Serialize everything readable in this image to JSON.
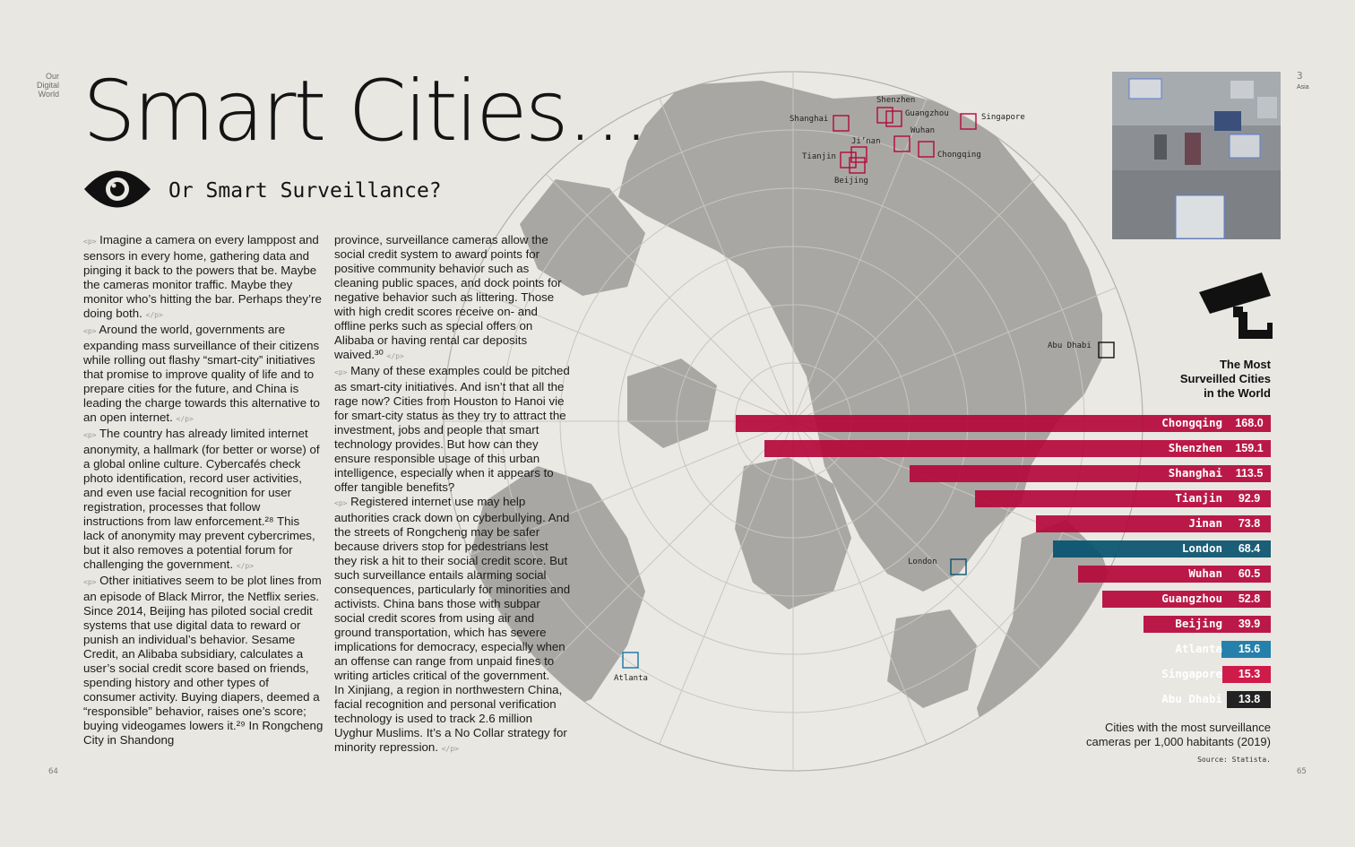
{
  "section": {
    "line1": "Our",
    "line2": "Digital",
    "line3": "World"
  },
  "title": "Smart Cities…",
  "subtitle": "Or Smart Surveillance?",
  "icons": {
    "eye": "eye-icon",
    "camera": "cctv-camera-icon"
  },
  "columns": {
    "left": [
      "Imagine a camera on every lamppost and sensors in every home, gathering data and pinging it back to the powers that be. Maybe the cameras monitor traffic. Maybe they monitor who’s hitting the bar. Perhaps they’re doing both.",
      "Around the world, governments are expanding mass surveillance of their citizens while rolling out flashy “smart-city” initiatives that promise to improve quality of life and to prepare cities for the future, and China is leading the charge towards this alternative to an open internet.",
      "The country has already limited internet anonymity, a hallmark (for better or worse) of a global online culture. Cybercafés check photo identification, record user activities, and even use facial recognition for user registration, processes that follow instructions from law enforcement.²⁸ This lack of anonymity may prevent cybercrimes, but it also removes a potential forum for challenging the government.",
      "Other initiatives seem to be plot lines from an episode of Black Mirror, the Netflix series. Since 2014, Beijing has piloted social credit systems that use digital data to reward or punish an individual’s behavior. Sesame Credit, an Alibaba subsidiary, calculates a user’s social credit score based on friends, spending history and other types of consumer activity. Buying diapers, deemed a “responsible” behavior, raises one’s score; buying videogames lowers it.²⁹ In Rongcheng City in Shandong"
    ],
    "right": [
      "province, surveillance cameras allow the social credit system to award points for positive community behavior such as cleaning public spaces, and dock points for negative behavior such as littering. Those with high credit scores receive on- and offline perks such as special offers on Alibaba or having rental car deposits waived.³⁰",
      "Many of these examples could be pitched as smart-city initiatives. And isn’t that all the rage now? Cities from Houston to Hanoi vie for smart-city status as they try to attract the investment, jobs and people that smart technology provides. But how can they ensure responsible usage of this urban intelligence, especially when it appears to offer tangible benefits?",
      "Registered internet use may help authorities crack down on cyberbullying. And the streets of Rongcheng may be safer because drivers stop for pedestrians lest they risk a hit to their social credit score. But such surveillance entails alarming social consequences, particularly for minorities and activists. China bans those with subpar social credit scores from using air and ground transportation, which has severe implications for democracy, especially when an offense can range from unpaid fines to writing articles critical of the government.",
      "In Xinjiang, a region in northwestern China, facial recognition and personal verification technology is used to track 2.6 million Uyghur Muslims. It’s a No Collar strategy for minority repression."
    ],
    "open_mark": "<p>",
    "close_mark": "</p>"
  },
  "pages": {
    "left": "64",
    "right": "65",
    "chapter_num": "3",
    "chapter_name": "Asia"
  },
  "map_labels": {
    "shanghai": "Shanghai",
    "shenzhen": "Shenzhen",
    "guangzhou": "Guangzhou",
    "singapore": "Singapore",
    "jinan": "Ji’nan",
    "wuhan": "Wuhan",
    "tianjin": "Tianjin",
    "chongqing": "Chongqing",
    "beijing": "Beijing",
    "abu_dhabi": "Abu Dhabi",
    "london": "London",
    "atlanta": "Atlanta"
  },
  "chart_data": {
    "type": "bar",
    "orientation": "horizontal",
    "title": "The Most Surveilled Cities in the World",
    "title_lines": [
      "The Most",
      "Surveilled Cities",
      "in the World"
    ],
    "categories": [
      "Chongqing",
      "Shenzhen",
      "Shanghai",
      "Tianjin",
      "Jinan",
      "London",
      "Wuhan",
      "Guangzhou",
      "Beijing",
      "Atlanta",
      "Singapore",
      "Abu Dhabi"
    ],
    "values": [
      168.0,
      159.1,
      113.5,
      92.9,
      73.8,
      68.4,
      60.5,
      52.8,
      39.9,
      15.6,
      15.3,
      13.8
    ],
    "value_labels": [
      "168.0",
      "159.1",
      "113.5",
      "92.9",
      "73.8",
      "68.4",
      "60.5",
      "52.8",
      "39.9",
      "15.6",
      "15.3",
      "13.8"
    ],
    "region_colors": {
      "china": "#b5083a",
      "uk": "#08536f",
      "usa": "#1477a6",
      "singapore": "#cc0a3d",
      "uae": "#111111"
    },
    "bar_colors": [
      "#b5083a",
      "#b5083a",
      "#b5083a",
      "#b5083a",
      "#b5083a",
      "#08536f",
      "#b5083a",
      "#b5083a",
      "#b5083a",
      "#1477a6",
      "#cc0a3d",
      "#111111"
    ],
    "caption": [
      "Cities with the most surveillance",
      "cameras per 1,000 habitants (2019)"
    ],
    "source": "Source: Statista."
  }
}
